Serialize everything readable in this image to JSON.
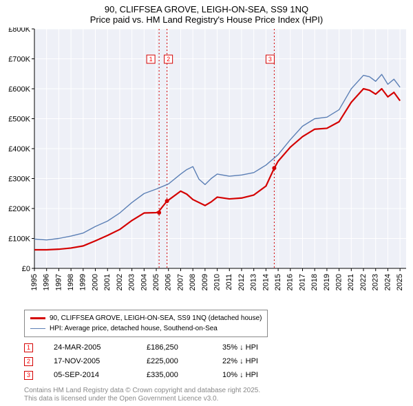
{
  "title_line1": "90, CLIFFSEA GROVE, LEIGH-ON-SEA, SS9 1NQ",
  "title_line2": "Price paid vs. HM Land Registry's House Price Index (HPI)",
  "chart": {
    "type": "line",
    "plot_bg": "#eef0f7",
    "grid_color": "#ffffff",
    "axis_color": "#000000",
    "y": {
      "min": 0,
      "max": 800000,
      "tick_step": 100000,
      "labels": [
        "£0",
        "£100K",
        "£200K",
        "£300K",
        "£400K",
        "£500K",
        "£600K",
        "£700K",
        "£800K"
      ]
    },
    "x": {
      "years": [
        1995,
        1996,
        1997,
        1998,
        1999,
        2000,
        2001,
        2002,
        2003,
        2004,
        2005,
        2006,
        2007,
        2008,
        2009,
        2010,
        2011,
        2012,
        2013,
        2014,
        2015,
        2016,
        2017,
        2018,
        2019,
        2020,
        2021,
        2022,
        2023,
        2024,
        2025
      ]
    },
    "series": [
      {
        "name": "property",
        "label": "90, CLIFFSEA GROVE, LEIGH-ON-SEA, SS9 1NQ (detached house)",
        "color": "#d40000",
        "width": 2.2,
        "data": [
          [
            1995,
            62000
          ],
          [
            1996,
            62000
          ],
          [
            1997,
            64000
          ],
          [
            1998,
            68000
          ],
          [
            1999,
            75000
          ],
          [
            2000,
            92000
          ],
          [
            2001,
            110000
          ],
          [
            2002,
            130000
          ],
          [
            2003,
            160000
          ],
          [
            2004,
            185000
          ],
          [
            2005,
            186250
          ],
          [
            2005.2,
            190000
          ],
          [
            2005.88,
            225000
          ],
          [
            2006,
            228000
          ],
          [
            2007,
            258000
          ],
          [
            2007.5,
            248000
          ],
          [
            2008,
            230000
          ],
          [
            2009,
            210000
          ],
          [
            2009.5,
            222000
          ],
          [
            2010,
            238000
          ],
          [
            2011,
            232000
          ],
          [
            2012,
            235000
          ],
          [
            2013,
            245000
          ],
          [
            2014,
            275000
          ],
          [
            2014.68,
            335000
          ],
          [
            2015,
            358000
          ],
          [
            2016,
            405000
          ],
          [
            2017,
            440000
          ],
          [
            2018,
            465000
          ],
          [
            2019,
            468000
          ],
          [
            2020,
            490000
          ],
          [
            2021,
            555000
          ],
          [
            2022,
            600000
          ],
          [
            2022.5,
            595000
          ],
          [
            2023,
            582000
          ],
          [
            2023.5,
            600000
          ],
          [
            2024,
            573000
          ],
          [
            2024.5,
            588000
          ],
          [
            2025,
            560000
          ]
        ]
      },
      {
        "name": "hpi",
        "label": "HPI: Average price, detached house, Southend-on-Sea",
        "color": "#5b7fb5",
        "width": 1.4,
        "data": [
          [
            1995,
            98000
          ],
          [
            1996,
            95000
          ],
          [
            1997,
            100000
          ],
          [
            1998,
            108000
          ],
          [
            1999,
            118000
          ],
          [
            2000,
            140000
          ],
          [
            2001,
            158000
          ],
          [
            2002,
            185000
          ],
          [
            2003,
            220000
          ],
          [
            2004,
            250000
          ],
          [
            2005,
            265000
          ],
          [
            2006,
            282000
          ],
          [
            2007,
            315000
          ],
          [
            2007.5,
            330000
          ],
          [
            2008,
            340000
          ],
          [
            2008.5,
            298000
          ],
          [
            2009,
            280000
          ],
          [
            2009.5,
            300000
          ],
          [
            2010,
            315000
          ],
          [
            2011,
            308000
          ],
          [
            2012,
            312000
          ],
          [
            2013,
            320000
          ],
          [
            2014,
            345000
          ],
          [
            2015,
            380000
          ],
          [
            2016,
            430000
          ],
          [
            2017,
            475000
          ],
          [
            2018,
            500000
          ],
          [
            2019,
            505000
          ],
          [
            2020,
            530000
          ],
          [
            2021,
            600000
          ],
          [
            2022,
            645000
          ],
          [
            2022.5,
            640000
          ],
          [
            2023,
            625000
          ],
          [
            2023.5,
            648000
          ],
          [
            2024,
            615000
          ],
          [
            2024.5,
            632000
          ],
          [
            2025,
            605000
          ]
        ]
      }
    ],
    "sale_markers": [
      {
        "num": "1",
        "year": 2005.23,
        "color": "#d40000"
      },
      {
        "num": "2",
        "year": 2005.88,
        "color": "#d40000"
      },
      {
        "num": "3",
        "year": 2014.68,
        "color": "#d40000"
      }
    ]
  },
  "legend": {
    "rows": [
      {
        "color": "#d40000",
        "width": 2.2,
        "text": "90, CLIFFSEA GROVE, LEIGH-ON-SEA, SS9 1NQ (detached house)"
      },
      {
        "color": "#5b7fb5",
        "width": 1.4,
        "text": "HPI: Average price, detached house, Southend-on-Sea"
      }
    ]
  },
  "sales": [
    {
      "num": "1",
      "date": "24-MAR-2005",
      "price": "£186,250",
      "note": "35% ↓ HPI"
    },
    {
      "num": "2",
      "date": "17-NOV-2005",
      "price": "£225,000",
      "note": "22% ↓ HPI"
    },
    {
      "num": "3",
      "date": "05-SEP-2014",
      "price": "£335,000",
      "note": "10% ↓ HPI"
    }
  ],
  "footer_line1": "Contains HM Land Registry data © Crown copyright and database right 2025.",
  "footer_line2": "This data is licensed under the Open Government Licence v3.0."
}
